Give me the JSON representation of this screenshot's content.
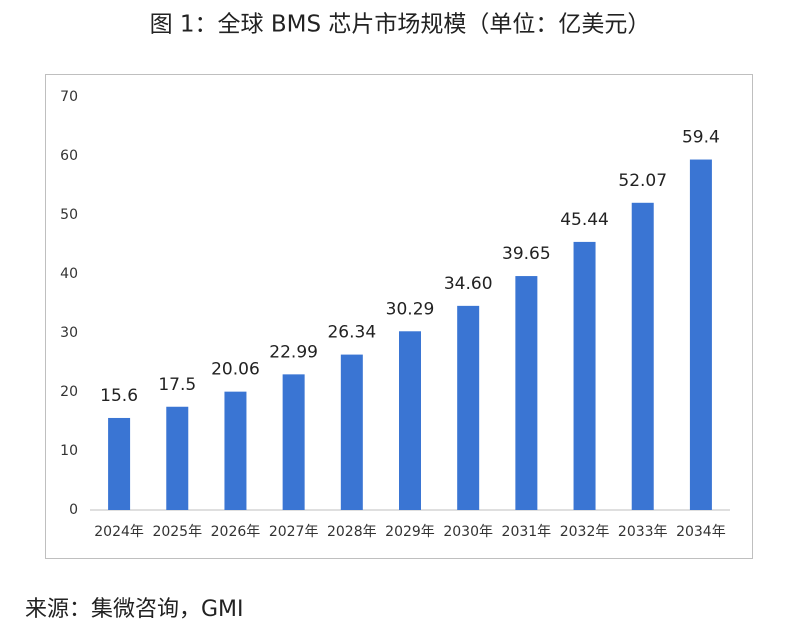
{
  "chart_data": {
    "type": "bar",
    "title": "图 1：全球 BMS 芯片市场规模（单位：亿美元）",
    "categories": [
      "2024年",
      "2025年",
      "2026年",
      "2027年",
      "2028年",
      "2029年",
      "2030年",
      "2031年",
      "2032年",
      "2033年",
      "2034年"
    ],
    "values": [
      15.6,
      17.5,
      20.06,
      22.99,
      26.34,
      30.29,
      34.6,
      39.65,
      45.44,
      52.07,
      59.4
    ],
    "value_labels": [
      "15.6",
      "17.5",
      "20.06",
      "22.99",
      "26.34",
      "30.29",
      "34.60",
      "39.65",
      "45.44",
      "52.07",
      "59.4"
    ],
    "color": "#3a75d3",
    "ylim": [
      0,
      70
    ],
    "yticks": [
      0,
      10,
      20,
      30,
      40,
      50,
      60,
      70
    ],
    "grid": false
  },
  "source": "来源：集微咨询，GMI"
}
